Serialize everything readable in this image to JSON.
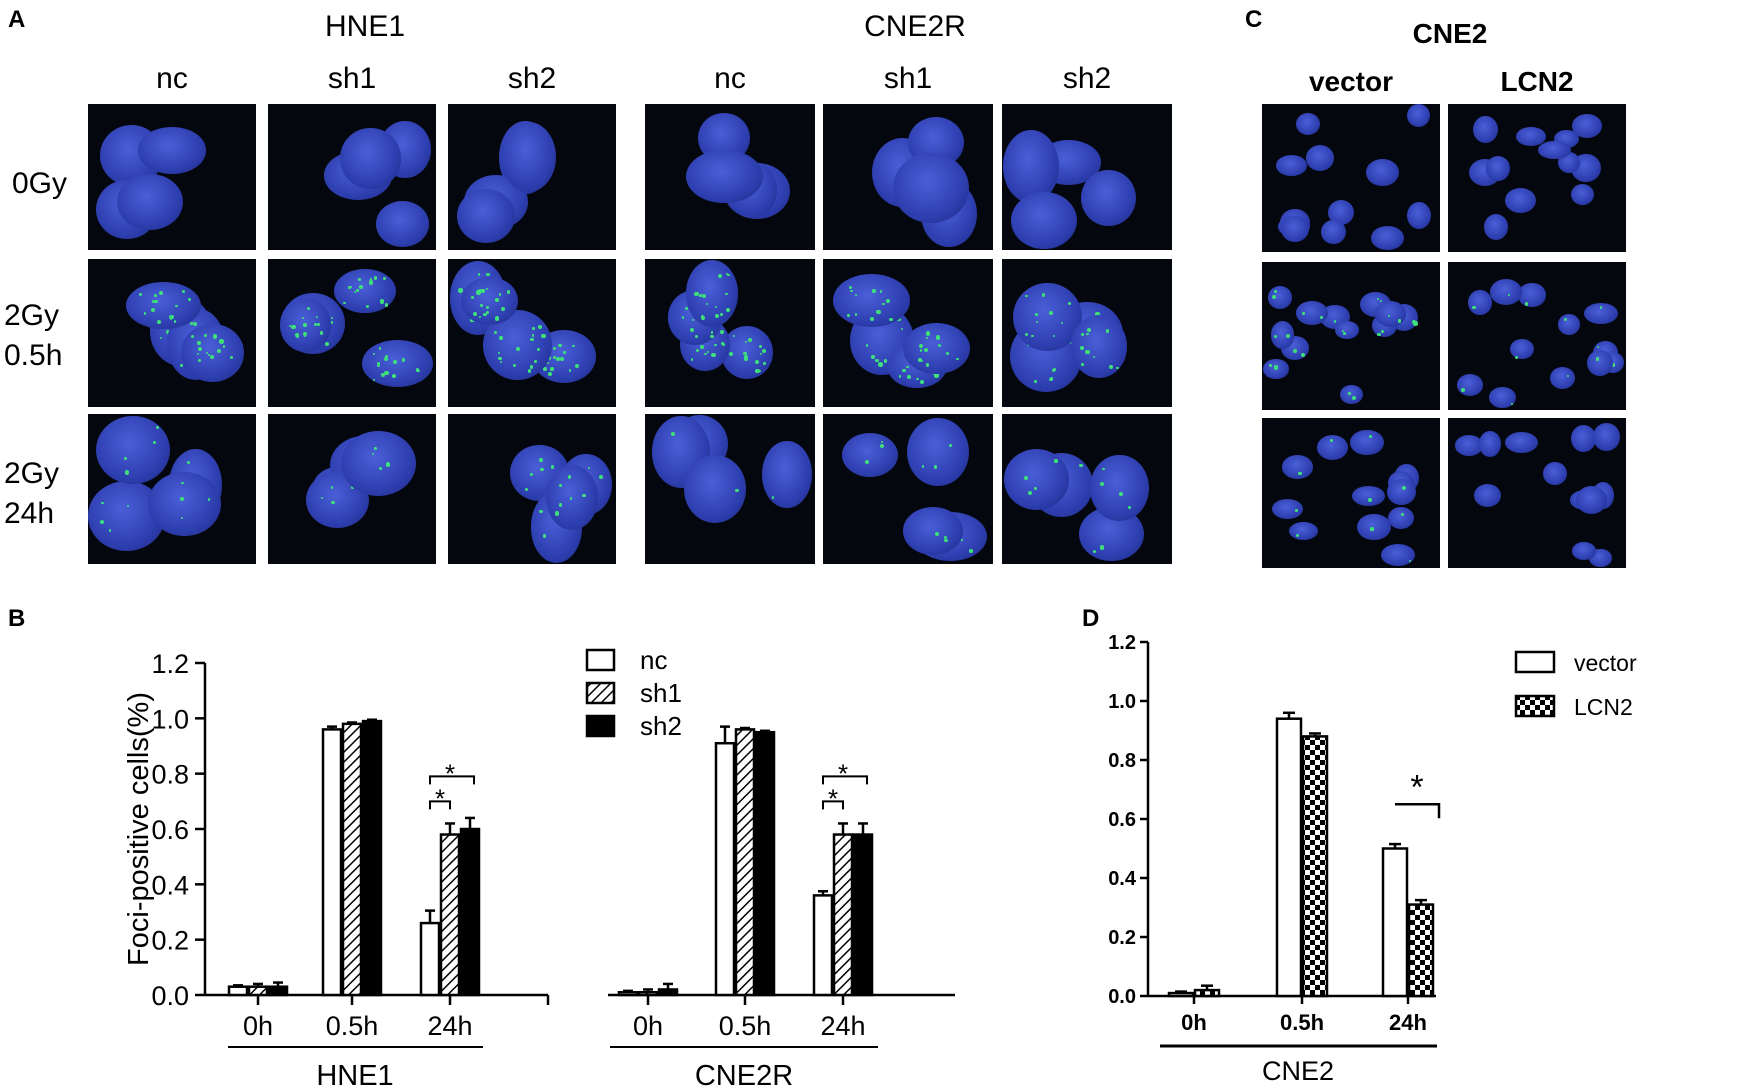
{
  "panels": {
    "A": "A",
    "B": "B",
    "C": "C",
    "D": "D"
  },
  "panelA": {
    "groups": [
      {
        "title": "HNE1",
        "cols": [
          "nc",
          "sh1",
          "sh2"
        ]
      },
      {
        "title": "CNE2R",
        "cols": [
          "nc",
          "sh1",
          "sh2"
        ]
      }
    ],
    "rows": [
      {
        "line1": "0Gy",
        "line2": ""
      },
      {
        "line1": "2Gy",
        "line2": "0.5h"
      },
      {
        "line1": "2Gy",
        "line2": "24h"
      }
    ]
  },
  "panelC": {
    "title": "CNE2",
    "cols": [
      "vector",
      "LCN2"
    ]
  },
  "colors": {
    "nucleus": "#2e3fb0",
    "foci": "#3de07a",
    "background": "#05070f"
  },
  "chart_data": [
    {
      "panel": "B",
      "type": "bar",
      "ylabel": "Foci-positive cells(%)",
      "ylim": [
        0,
        1.2
      ],
      "yticks": [
        "0.0",
        "0.2",
        "0.4",
        "0.6",
        "0.8",
        "1.0",
        "1.2"
      ],
      "groups": [
        "HNE1",
        "CNE2R"
      ],
      "categories": [
        "0h",
        "0.5h",
        "24h"
      ],
      "series": [
        {
          "name": "nc",
          "pattern": "open",
          "values": {
            "HNE1": [
              0.03,
              0.96,
              0.26
            ],
            "CNE2R": [
              0.01,
              0.91,
              0.36
            ]
          },
          "errors": {
            "HNE1": [
              0.005,
              0.01,
              0.045
            ],
            "CNE2R": [
              0.005,
              0.06,
              0.015
            ]
          }
        },
        {
          "name": "sh1",
          "pattern": "hatched",
          "values": {
            "HNE1": [
              0.03,
              0.98,
              0.58
            ],
            "CNE2R": [
              0.01,
              0.96,
              0.58
            ]
          },
          "errors": {
            "HNE1": [
              0.01,
              0.005,
              0.04
            ],
            "CNE2R": [
              0.01,
              0.005,
              0.04
            ]
          }
        },
        {
          "name": "sh2",
          "pattern": "solid",
          "values": {
            "HNE1": [
              0.03,
              0.99,
              0.6
            ],
            "CNE2R": [
              0.02,
              0.95,
              0.58
            ]
          },
          "errors": {
            "HNE1": [
              0.015,
              0.005,
              0.04
            ],
            "CNE2R": [
              0.02,
              0.005,
              0.04
            ]
          }
        }
      ],
      "significance": [
        {
          "group": "HNE1",
          "label": "*",
          "from": "nc",
          "to": "sh1"
        },
        {
          "group": "HNE1",
          "label": "*",
          "from": "nc",
          "to": "sh2"
        },
        {
          "group": "CNE2R",
          "label": "*",
          "from": "nc",
          "to": "sh1"
        },
        {
          "group": "CNE2R",
          "label": "*",
          "from": "nc",
          "to": "sh2"
        }
      ],
      "legend": "top-center"
    },
    {
      "panel": "D",
      "type": "bar",
      "ylabel": "Foci-positive cells(%)",
      "ylim": [
        0,
        1.2
      ],
      "yticks": [
        "0.0",
        "0.2",
        "0.4",
        "0.6",
        "0.8",
        "1.0",
        "1.2"
      ],
      "group": "CNE2",
      "categories": [
        "0h",
        "0.5h",
        "24h"
      ],
      "series": [
        {
          "name": "vector",
          "pattern": "open",
          "values": [
            0.01,
            0.94,
            0.5
          ],
          "errors": [
            0.005,
            0.02,
            0.015
          ]
        },
        {
          "name": "LCN2",
          "pattern": "checkered",
          "values": [
            0.02,
            0.88,
            0.31
          ],
          "errors": [
            0.015,
            0.01,
            0.015
          ]
        }
      ],
      "significance": [
        {
          "label": "*",
          "from": "vector",
          "to": "LCN2",
          "category": "24h"
        }
      ],
      "legend": "top-right"
    }
  ]
}
